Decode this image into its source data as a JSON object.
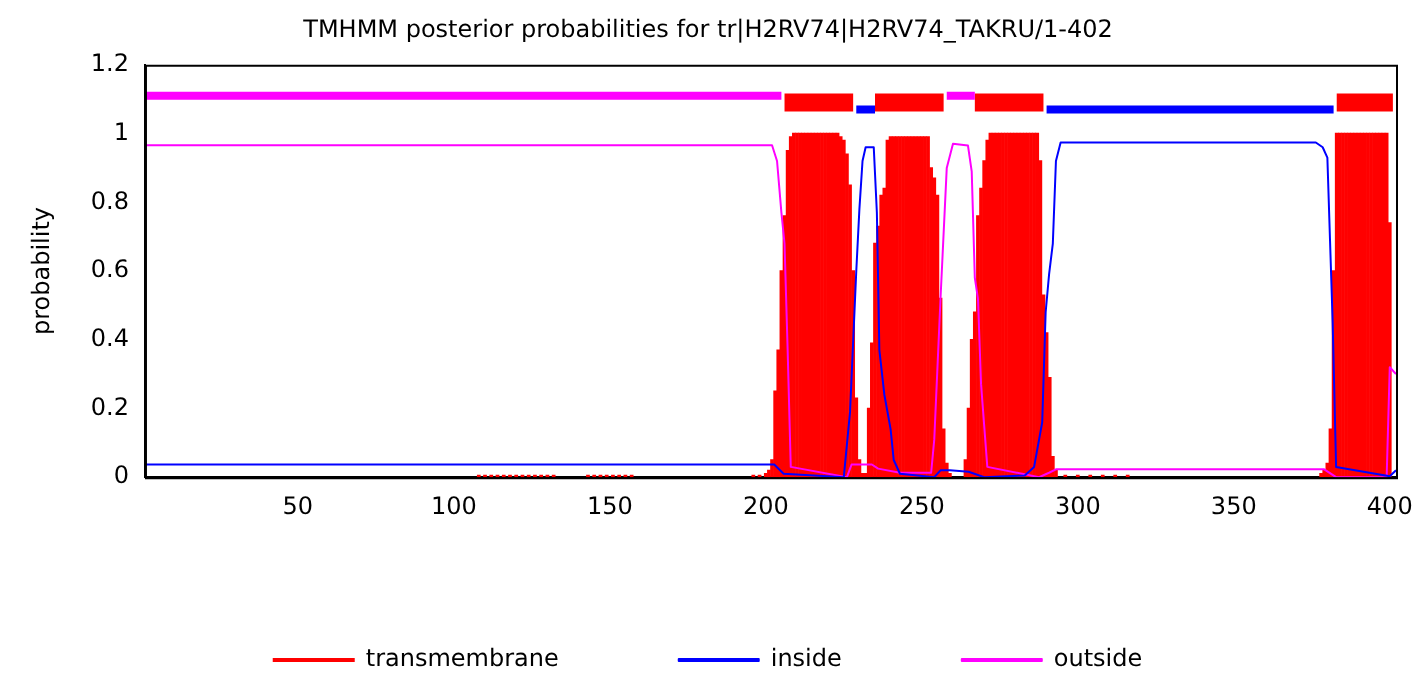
{
  "chart_data": {
    "type": "line",
    "title": "TMHMM posterior probabilities for tr|H2RV74|H2RV74_TAKRU/1-402",
    "ylabel": "probability",
    "xlim": [
      1,
      402
    ],
    "xticks": [
      50,
      100,
      150,
      200,
      250,
      300,
      350,
      400
    ],
    "ylim": [
      0,
      1.2
    ],
    "yticks": [
      0,
      0.2,
      0.4,
      0.6,
      0.8,
      1,
      1.2
    ],
    "grid": false,
    "legend": "bottom",
    "series": [
      {
        "name": "transmembrane",
        "type": "bar",
        "color": "#ff0000",
        "x": [
          108,
          110,
          112,
          114,
          116,
          118,
          120,
          122,
          124,
          126,
          128,
          130,
          132,
          143,
          145,
          147,
          149,
          151,
          153,
          155,
          157,
          196,
          198,
          200,
          201,
          202,
          203,
          204,
          205,
          206,
          207,
          208,
          209,
          210,
          211,
          212,
          213,
          214,
          215,
          216,
          217,
          218,
          219,
          220,
          221,
          222,
          223,
          224,
          225,
          226,
          227,
          228,
          229,
          230,
          231,
          232,
          233,
          234,
          235,
          236,
          237,
          238,
          239,
          240,
          241,
          242,
          243,
          244,
          245,
          246,
          247,
          248,
          249,
          250,
          251,
          252,
          253,
          254,
          255,
          256,
          257,
          258,
          259,
          264,
          265,
          266,
          267,
          268,
          269,
          270,
          271,
          272,
          273,
          274,
          275,
          276,
          277,
          278,
          279,
          280,
          281,
          282,
          283,
          284,
          285,
          286,
          287,
          288,
          289,
          290,
          291,
          292,
          293,
          296,
          300,
          304,
          308,
          312,
          316,
          378,
          379,
          380,
          381,
          382,
          383,
          384,
          385,
          386,
          387,
          388,
          389,
          390,
          391,
          392,
          393,
          394,
          395,
          396,
          397,
          398,
          399,
          400
        ],
        "values": [
          0.005,
          0.005,
          0.005,
          0.005,
          0.005,
          0.005,
          0.005,
          0.005,
          0.005,
          0.005,
          0.005,
          0.005,
          0.005,
          0.005,
          0.005,
          0.005,
          0.005,
          0.005,
          0.005,
          0.005,
          0.005,
          0.005,
          0.005,
          0.01,
          0.02,
          0.05,
          0.25,
          0.37,
          0.6,
          0.76,
          0.95,
          0.99,
          1,
          1,
          1,
          1,
          1,
          1,
          1,
          1,
          1,
          1,
          1,
          1,
          1,
          1,
          1,
          0.99,
          0.98,
          0.94,
          0.85,
          0.6,
          0.23,
          0.05,
          0.01,
          0.01,
          0.2,
          0.39,
          0.68,
          0.73,
          0.82,
          0.84,
          0.98,
          0.99,
          0.99,
          0.99,
          0.99,
          0.99,
          0.99,
          0.99,
          0.99,
          0.99,
          0.99,
          0.99,
          0.99,
          0.99,
          0.9,
          0.87,
          0.82,
          0.52,
          0.14,
          0.04,
          0.01,
          0.05,
          0.2,
          0.4,
          0.48,
          0.76,
          0.84,
          0.92,
          0.98,
          1,
          1,
          1,
          1,
          1,
          1,
          1,
          1,
          1,
          1,
          1,
          1,
          1,
          1,
          1,
          1,
          0.92,
          0.53,
          0.42,
          0.29,
          0.06,
          0.02,
          0.005,
          0.005,
          0.005,
          0.005,
          0.005,
          0.005,
          0.01,
          0.02,
          0.04,
          0.14,
          0.6,
          1,
          1,
          1,
          1,
          1,
          1,
          1,
          1,
          1,
          1,
          1,
          1,
          1,
          1,
          1,
          1,
          1,
          0.74
        ]
      },
      {
        "name": "inside",
        "color": "#0000ff",
        "x": [
          1,
          200,
          202.7,
          205.7,
          225,
          227,
          229,
          230,
          231,
          232,
          234.6,
          235.6,
          236.4,
          238,
          239,
          240,
          241,
          243,
          254,
          256,
          259,
          265,
          270,
          283,
          286,
          288.6,
          289.7,
          290.8,
          292,
          293,
          294.5,
          376.3,
          378.5,
          380,
          381.7,
          382.8,
          400,
          402
        ],
        "values": [
          0.037,
          0.037,
          0.037,
          0.01,
          0,
          0.19,
          0.6,
          0.78,
          0.92,
          0.96,
          0.96,
          0.77,
          0.37,
          0.24,
          0.19,
          0.14,
          0.05,
          0.01,
          0,
          0.02,
          0.02,
          0.016,
          0,
          0.005,
          0.03,
          0.16,
          0.48,
          0.59,
          0.68,
          0.92,
          0.974,
          0.974,
          0.96,
          0.93,
          0.45,
          0.03,
          0.003,
          0.02
        ]
      },
      {
        "name": "outside",
        "color": "#ff00ff",
        "x": [
          1,
          202,
          203.6,
          205,
          206,
          207,
          208,
          226,
          227.5,
          234,
          236,
          243,
          253,
          254,
          256,
          258,
          260,
          264.8,
          266,
          267,
          268,
          269,
          271,
          287.6,
          290.8,
          293,
          379,
          382.8,
          399,
          400,
          402
        ],
        "values": [
          0.966,
          0.966,
          0.92,
          0.77,
          0.68,
          0.37,
          0.03,
          0,
          0.037,
          0.037,
          0.025,
          0.013,
          0.013,
          0.11,
          0.52,
          0.9,
          0.97,
          0.965,
          0.89,
          0.58,
          0.52,
          0.27,
          0.03,
          0,
          0.013,
          0.023,
          0.023,
          0,
          0,
          0.32,
          0.3
        ]
      },
      {
        "color": "#ff00ff",
        "x": [
          1,
          205,
          206,
          258,
          267
        ],
        "values": [
          1.11,
          1.11,
          null,
          1.11,
          1.11
        ]
      },
      {
        "color": "#ff0000",
        "x": [
          206,
          228,
          229,
          235,
          257,
          258,
          267,
          289,
          290,
          383,
          401
        ],
        "values": [
          1.09,
          1.09,
          null,
          1.09,
          1.09,
          null,
          1.09,
          1.09,
          null,
          1.09,
          1.09
        ]
      },
      {
        "color": "#0000ff",
        "x": [
          229,
          235,
          236,
          290,
          382
        ],
        "values": [
          1.07,
          1.07,
          null,
          1.07,
          1.07
        ]
      }
    ]
  }
}
